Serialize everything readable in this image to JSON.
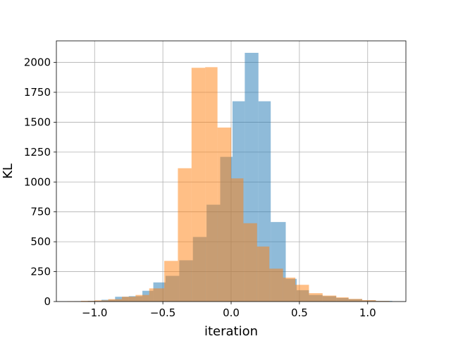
{
  "chart_data": {
    "type": "bar",
    "title": "",
    "xlabel": "iteration",
    "ylabel": "KL",
    "xlim": [
      -1.28,
      1.28
    ],
    "ylim": [
      0,
      2180
    ],
    "grid": true,
    "xticks": [
      -1.0,
      -0.5,
      0.0,
      0.5,
      1.0
    ],
    "xtick_labels": [
      "−1.0",
      "−0.5",
      "0.0",
      "0.5",
      "1.0"
    ],
    "yticks": [
      0,
      250,
      500,
      750,
      1000,
      1250,
      1500,
      1750,
      2000
    ],
    "ytick_labels": [
      "0",
      "250",
      "500",
      "750",
      "1000",
      "1250",
      "1500",
      "1750",
      "2000"
    ],
    "series": [
      {
        "color": "#1f77b4",
        "opacity": 0.5,
        "bins": [
          [
            -1.2,
            -1.15,
            2
          ],
          [
            -1.15,
            -1.05,
            3
          ],
          [
            -1.05,
            -0.95,
            6
          ],
          [
            -0.95,
            -0.85,
            15
          ],
          [
            -0.85,
            -0.75,
            40
          ],
          [
            -0.75,
            -0.65,
            45
          ],
          [
            -0.65,
            -0.57,
            90
          ],
          [
            -0.57,
            -0.48,
            160
          ],
          [
            -0.48,
            -0.38,
            215
          ],
          [
            -0.38,
            -0.28,
            345
          ],
          [
            -0.28,
            -0.18,
            540
          ],
          [
            -0.18,
            -0.08,
            810
          ],
          [
            -0.08,
            0.01,
            1210
          ],
          [
            0.01,
            0.1,
            1675
          ],
          [
            0.1,
            0.2,
            2080
          ],
          [
            0.2,
            0.29,
            1675
          ],
          [
            0.29,
            0.4,
            665
          ],
          [
            0.4,
            0.48,
            190
          ],
          [
            0.48,
            0.57,
            95
          ],
          [
            0.57,
            0.67,
            55
          ],
          [
            0.67,
            0.77,
            45
          ],
          [
            0.77,
            0.86,
            30
          ],
          [
            0.86,
            0.96,
            20
          ],
          [
            0.96,
            1.06,
            10
          ],
          [
            1.06,
            1.18,
            5
          ]
        ]
      },
      {
        "color": "#ff7f0e",
        "opacity": 0.5,
        "bins": [
          [
            -1.2,
            -1.1,
            3
          ],
          [
            -1.1,
            -1.0,
            6
          ],
          [
            -1.0,
            -0.9,
            10
          ],
          [
            -0.9,
            -0.8,
            20
          ],
          [
            -0.8,
            -0.7,
            40
          ],
          [
            -0.7,
            -0.6,
            55
          ],
          [
            -0.6,
            -0.49,
            110
          ],
          [
            -0.49,
            -0.39,
            340
          ],
          [
            -0.39,
            -0.29,
            1115
          ],
          [
            -0.29,
            -0.19,
            1955
          ],
          [
            -0.19,
            -0.1,
            1960
          ],
          [
            -0.1,
            0.0,
            1455
          ],
          [
            0.0,
            0.09,
            1030
          ],
          [
            0.09,
            0.19,
            655
          ],
          [
            0.19,
            0.28,
            460
          ],
          [
            0.28,
            0.38,
            275
          ],
          [
            0.38,
            0.47,
            200
          ],
          [
            0.47,
            0.57,
            140
          ],
          [
            0.57,
            0.67,
            70
          ],
          [
            0.67,
            0.77,
            50
          ],
          [
            0.77,
            0.86,
            35
          ],
          [
            0.86,
            0.96,
            22
          ],
          [
            0.96,
            1.06,
            12
          ],
          [
            1.06,
            1.16,
            5
          ]
        ]
      }
    ]
  }
}
